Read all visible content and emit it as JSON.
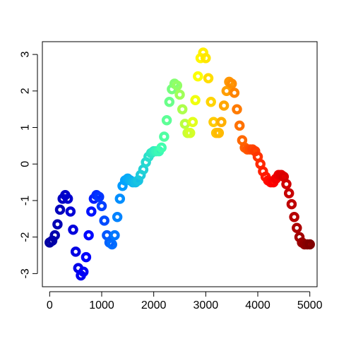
{
  "chart_data": {
    "type": "scatter",
    "title": "",
    "xlabel": "",
    "ylabel": "",
    "xlim": [
      -140,
      5140
    ],
    "ylim": [
      -3.36,
      3.35
    ],
    "x_ticks": [
      0,
      1000,
      2000,
      3000,
      4000,
      5000
    ],
    "x_tick_labels": [
      "0",
      "1000",
      "2000",
      "3000",
      "4000",
      "5000"
    ],
    "y_ticks": [
      -3,
      -2,
      -1,
      0,
      1,
      2,
      3
    ],
    "y_tick_labels": [
      "-3",
      "-2",
      "-1",
      "0",
      "1",
      "2",
      "3"
    ],
    "grid": false,
    "marker": "open-circle",
    "color_map": "rainbow blue-to-darkred by x",
    "colors": [
      "#0000a0",
      "#0000ff",
      "#00a0ff",
      "#40ffb0",
      "#ffff00",
      "#ff8000",
      "#ff0000",
      "#800000"
    ],
    "series": [
      {
        "x": [
          0,
          50,
          100,
          150,
          200,
          250,
          300,
          350,
          400,
          450,
          500,
          550,
          600,
          650,
          700,
          750,
          800,
          850,
          900,
          950,
          1000,
          1050,
          1100,
          1150,
          1200,
          1250,
          1300,
          1350,
          1400,
          1450,
          1500,
          1550,
          1600,
          1650,
          1700,
          1750,
          1800,
          1850,
          1900,
          1950,
          2000,
          2050,
          2100,
          2150,
          2200,
          2250,
          2300,
          2350,
          2400,
          2450,
          2500,
          2550,
          2600,
          2650,
          2700,
          2750,
          2800,
          2850,
          2900,
          2950,
          3000,
          3050,
          3100,
          3150,
          3200,
          3250,
          3300,
          3350,
          3400,
          3450,
          3500,
          3550,
          3600,
          3650,
          3700,
          3750,
          3800,
          3850,
          3900,
          3950,
          4000,
          4050,
          4100,
          4150,
          4200,
          4250,
          4300,
          4350,
          4400,
          4450,
          4500,
          4550,
          4600,
          4650,
          4700,
          4750,
          4800,
          4850,
          4900,
          4950,
          5000
        ],
        "y": [
          -2.15,
          -2.1,
          -1.95,
          -1.65,
          -1.25,
          -0.95,
          -0.85,
          -0.95,
          -1.3,
          -1.8,
          -2.4,
          -2.85,
          -3.05,
          -2.95,
          -2.55,
          -1.95,
          -1.3,
          -0.95,
          -0.85,
          -0.9,
          -1.15,
          -1.55,
          -1.95,
          -2.15,
          -2.2,
          -1.95,
          -1.45,
          -0.95,
          -0.6,
          -0.45,
          -0.4,
          -0.45,
          -0.5,
          -0.5,
          -0.45,
          -0.3,
          -0.15,
          0.05,
          0.2,
          0.3,
          0.35,
          0.35,
          0.35,
          0.45,
          0.75,
          1.2,
          1.7,
          2.05,
          2.2,
          2.15,
          1.9,
          1.5,
          1.1,
          0.85,
          0.85,
          1.15,
          1.75,
          2.4,
          2.9,
          3.05,
          2.9,
          2.35,
          1.7,
          1.15,
          0.85,
          0.85,
          1.15,
          1.6,
          2.0,
          2.25,
          2.2,
          1.95,
          1.5,
          1.05,
          0.65,
          0.45,
          0.4,
          0.4,
          0.4,
          0.35,
          0.2,
          0.0,
          -0.2,
          -0.35,
          -0.45,
          -0.5,
          -0.5,
          -0.4,
          -0.3,
          -0.3,
          -0.35,
          -0.55,
          -0.8,
          -1.1,
          -1.45,
          -1.75,
          -2.0,
          -2.15,
          -2.2,
          -2.2,
          -2.2
        ]
      }
    ]
  }
}
